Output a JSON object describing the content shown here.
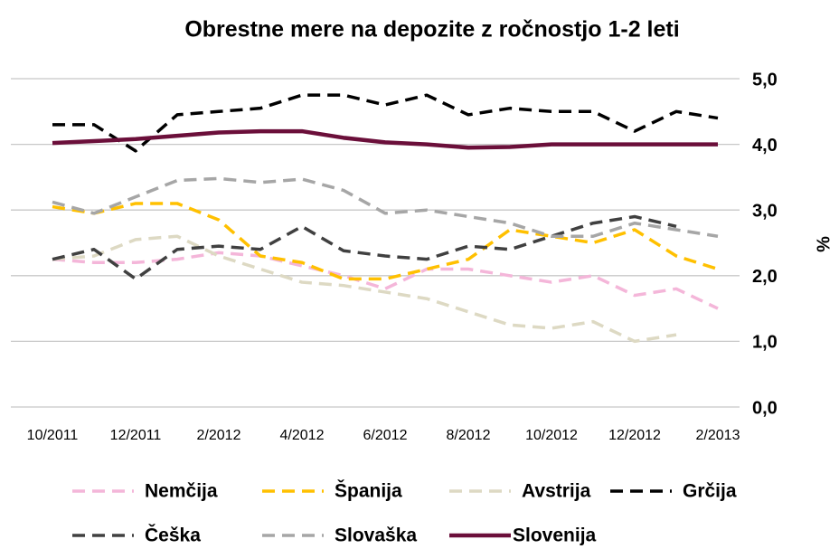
{
  "chart_data": {
    "type": "line",
    "title": "Obrestne mere na depozite z ročnostjo 1-2 leti",
    "y_axis_label": "%",
    "categories": [
      "10/2011",
      null,
      "12/2011",
      null,
      "2/2012",
      null,
      "4/2012",
      null,
      "6/2012",
      null,
      "8/2012",
      null,
      "10/2012",
      null,
      "12/2012",
      null,
      "2/2013"
    ],
    "series": [
      {
        "name": "Nemčija",
        "color": "#f4b6d9",
        "dashed": true,
        "values": [
          2.25,
          2.2,
          2.2,
          2.25,
          2.35,
          2.3,
          2.15,
          2.0,
          1.8,
          2.1,
          2.1,
          2.0,
          1.9,
          2.0,
          1.7,
          1.8,
          1.5
        ]
      },
      {
        "name": "Španija",
        "color": "#ffc000",
        "dashed": true,
        "values": [
          3.05,
          2.95,
          3.1,
          3.1,
          2.85,
          2.3,
          2.2,
          1.95,
          1.95,
          2.1,
          2.25,
          2.7,
          2.6,
          2.5,
          2.7,
          2.3,
          2.1
        ]
      },
      {
        "name": "Avstrija",
        "color": "#ddd9c3",
        "dashed": true,
        "values": [
          2.25,
          2.3,
          2.55,
          2.6,
          2.3,
          2.1,
          1.9,
          1.85,
          1.75,
          1.65,
          1.45,
          1.25,
          1.2,
          1.3,
          1.0,
          1.1,
          null
        ]
      },
      {
        "name": "Grčija",
        "color": "#000000",
        "dashed": true,
        "values": [
          4.3,
          4.3,
          3.9,
          4.45,
          4.5,
          4.55,
          4.75,
          4.75,
          4.6,
          4.75,
          4.45,
          4.55,
          4.5,
          4.5,
          4.2,
          4.5,
          4.4
        ]
      },
      {
        "name": "Češka",
        "color": "#404040",
        "dashed": true,
        "values": [
          2.25,
          2.4,
          1.95,
          2.4,
          2.45,
          2.4,
          2.75,
          2.38,
          2.3,
          2.25,
          2.45,
          2.4,
          2.6,
          2.8,
          2.9,
          2.75,
          null
        ]
      },
      {
        "name": "Slovaška",
        "color": "#a6a6a6",
        "dashed": true,
        "values": [
          3.12,
          2.95,
          3.2,
          3.45,
          3.48,
          3.42,
          3.47,
          3.3,
          2.95,
          3.0,
          2.9,
          2.8,
          2.6,
          2.6,
          2.8,
          2.7,
          2.6
        ]
      },
      {
        "name": "Slovenija",
        "color": "#6b0f3a",
        "dashed": false,
        "values": [
          4.02,
          4.05,
          4.08,
          4.13,
          4.18,
          4.2,
          4.2,
          4.1,
          4.03,
          4.0,
          3.95,
          3.96,
          4.0,
          4.0,
          4.0,
          4.0,
          4.0
        ]
      }
    ],
    "ylim": [
      0,
      5
    ],
    "yticks": [
      {
        "value": 0,
        "label": "0,0"
      },
      {
        "value": 1,
        "label": "1,0"
      },
      {
        "value": 2,
        "label": "2,0"
      },
      {
        "value": 3,
        "label": "3,0"
      },
      {
        "value": 4,
        "label": "4,0"
      },
      {
        "value": 5,
        "label": "5,0"
      }
    ],
    "grid": true
  }
}
